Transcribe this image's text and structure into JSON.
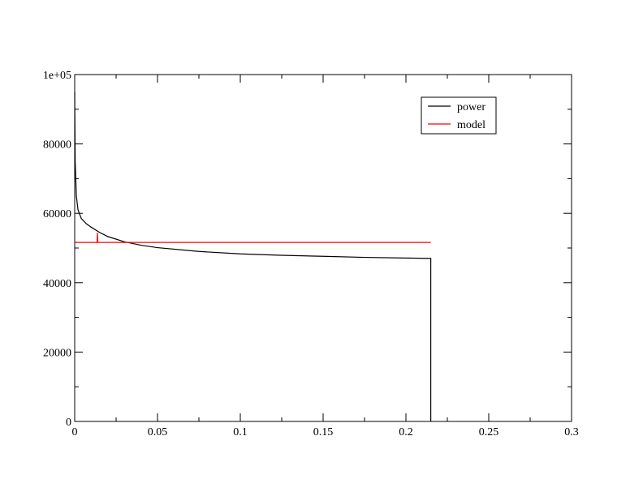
{
  "chart_data": {
    "type": "line",
    "xlim": [
      0,
      0.3
    ],
    "xticks": [
      0,
      0.05,
      0.1,
      0.15,
      0.2,
      0.25,
      0.3
    ],
    "ylim": [
      0,
      100000
    ],
    "yticks": [
      0,
      20000,
      40000,
      60000,
      80000,
      {
        "value": 100000,
        "label": "1e+05"
      }
    ],
    "legend": "top-right",
    "series": [
      {
        "name": "power",
        "color": "#000000",
        "x": [
          0,
          0.0003,
          0.001,
          0.002,
          0.004,
          0.007,
          0.01,
          0.015,
          0.02,
          0.03,
          0.04,
          0.05,
          0.075,
          0.1,
          0.125,
          0.15,
          0.175,
          0.2,
          0.215,
          0.215
        ],
        "values": [
          95000,
          75000,
          65000,
          61000,
          58500,
          57000,
          56000,
          54500,
          53300,
          51800,
          50800,
          50100,
          49000,
          48300,
          47900,
          47600,
          47300,
          47100,
          47000,
          0
        ]
      },
      {
        "name": "model",
        "color": "#ff0000",
        "x": [
          0,
          0.0135,
          0.0137,
          0.014,
          0.215
        ],
        "values": [
          51600,
          51600,
          54400,
          51600,
          51600
        ]
      }
    ]
  }
}
